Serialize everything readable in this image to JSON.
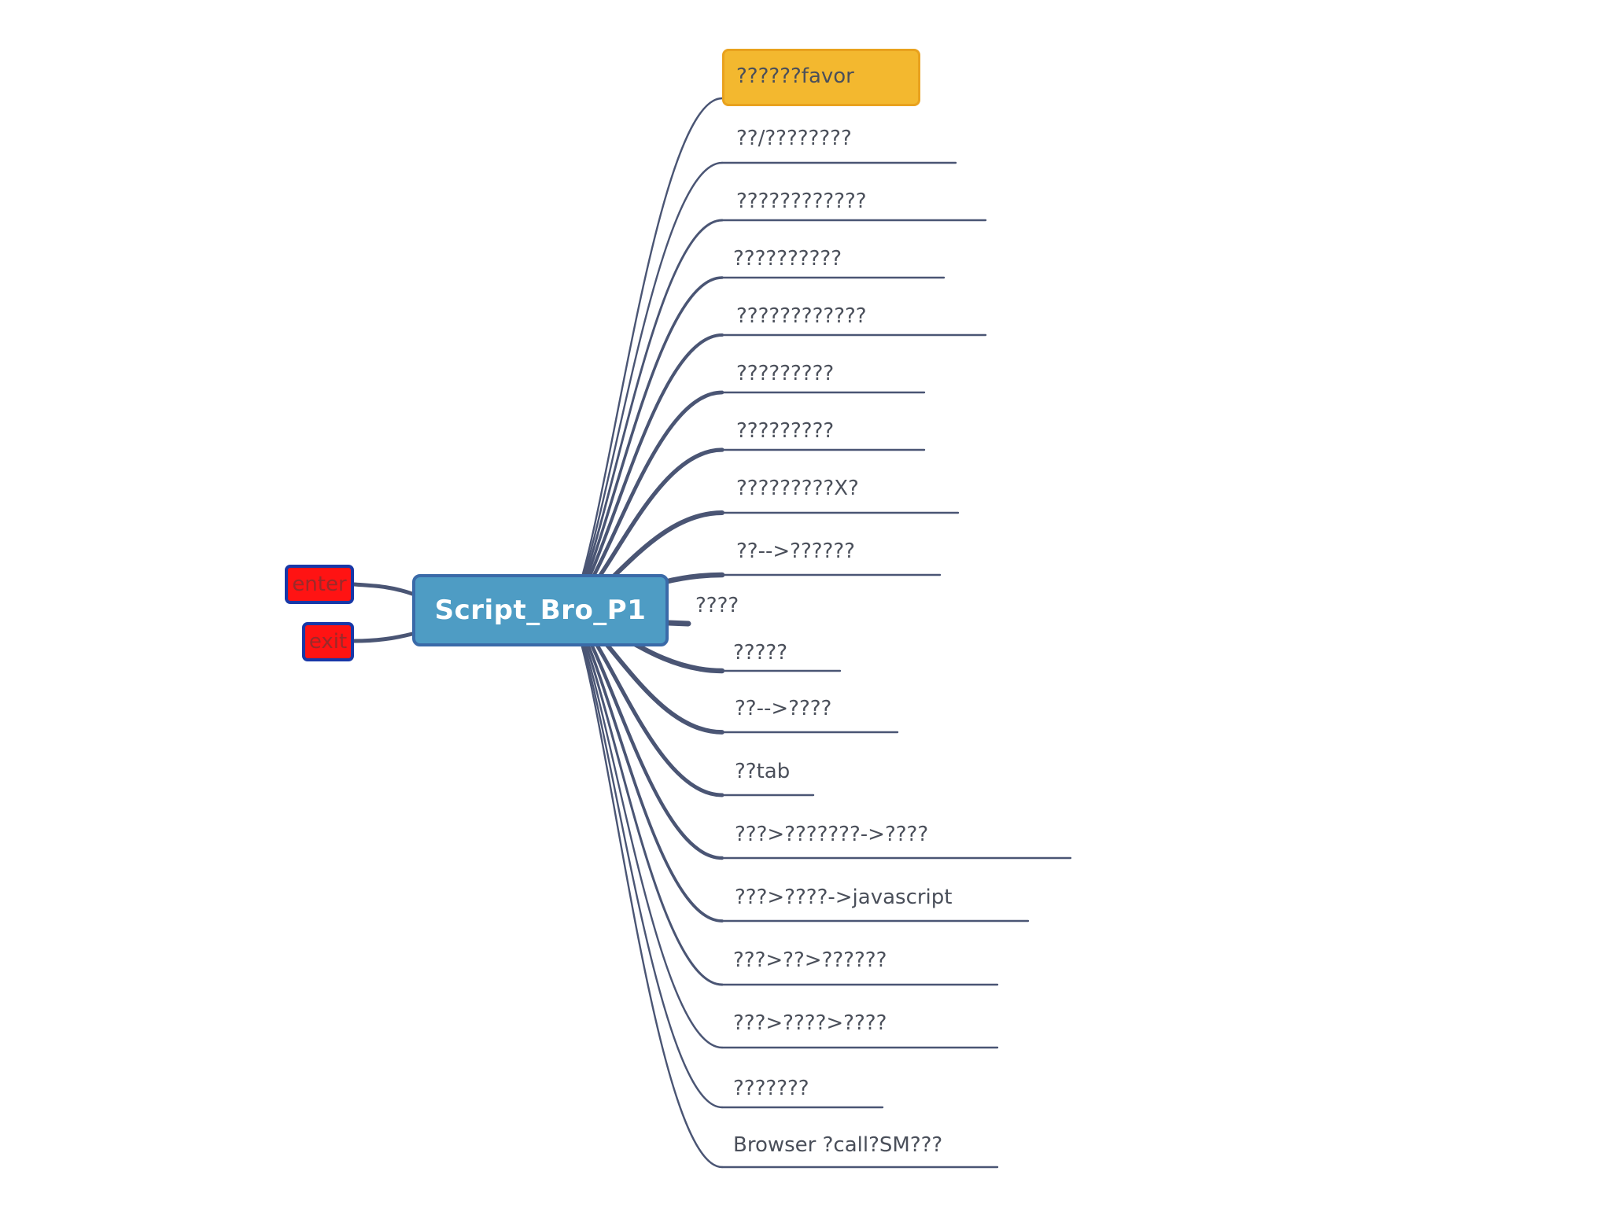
{
  "central_topic": "Script_Bro_P1",
  "left_topics": [
    {
      "label": "enter"
    },
    {
      "label": "exit"
    }
  ],
  "branches": [
    {
      "label": "??????favor",
      "highlight": true
    },
    {
      "label": "??/????????"
    },
    {
      "label": "????????????"
    },
    {
      "label": "??????????"
    },
    {
      "label": "????????????"
    },
    {
      "label": "?????????"
    },
    {
      "label": "?????????"
    },
    {
      "label": "?????????X?"
    },
    {
      "label": "??-->??????"
    },
    {
      "label": "????"
    },
    {
      "label": "?????"
    },
    {
      "label": "??-->????"
    },
    {
      "label": "??tab"
    },
    {
      "label": "???>???????->????"
    },
    {
      "label": "???>????->javascript"
    },
    {
      "label": "???>??>??????"
    },
    {
      "label": "???>????>????"
    },
    {
      "label": "???????"
    },
    {
      "label": "Browser ?call?SM???"
    }
  ],
  "colors": {
    "line": "#4a5574",
    "central_fill": "#4e9cc4",
    "central_border": "#3a6aa8",
    "highlight_fill": "#f3b82f",
    "left_fill": "#ff1313",
    "left_border": "#1838a8"
  }
}
